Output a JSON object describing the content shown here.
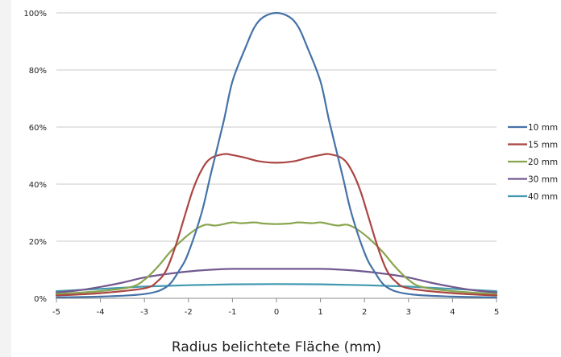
{
  "chart_data": {
    "type": "line",
    "title": "",
    "xlabel": "Radius belichtete Fläche (mm)",
    "ylabel": "",
    "xlim": [
      -5,
      5
    ],
    "ylim": [
      0,
      100
    ],
    "x_ticks": [
      "-5",
      "-4",
      "-3",
      "-2",
      "-1",
      "0",
      "1",
      "2",
      "3",
      "4",
      "5"
    ],
    "y_ticks": [
      "0%",
      "20%",
      "40%",
      "60%",
      "80%",
      "100%"
    ],
    "grid": "horizontal",
    "legend_position": "right",
    "series": [
      {
        "name": "10 mm",
        "color": "#4572a7",
        "points": [
          [
            -5,
            0.3
          ],
          [
            -4,
            0.6
          ],
          [
            -3,
            1.5
          ],
          [
            -2.5,
            4
          ],
          [
            -2.2,
            10
          ],
          [
            -2,
            16
          ],
          [
            -1.7,
            30
          ],
          [
            -1.5,
            43
          ],
          [
            -1.2,
            62
          ],
          [
            -1,
            76
          ],
          [
            -0.7,
            88
          ],
          [
            -0.5,
            95
          ],
          [
            -0.3,
            98.5
          ],
          [
            0,
            100
          ],
          [
            0.3,
            98.5
          ],
          [
            0.5,
            95
          ],
          [
            0.7,
            88
          ],
          [
            1,
            76
          ],
          [
            1.2,
            62
          ],
          [
            1.5,
            43
          ],
          [
            1.7,
            30
          ],
          [
            2,
            16
          ],
          [
            2.2,
            10
          ],
          [
            2.5,
            4
          ],
          [
            3,
            1.5
          ],
          [
            4,
            0.6
          ],
          [
            5,
            0.3
          ]
        ]
      },
      {
        "name": "15 mm",
        "color": "#aa4643",
        "points": [
          [
            -5,
            1
          ],
          [
            -4,
            1.8
          ],
          [
            -3,
            3.5
          ],
          [
            -2.7,
            6
          ],
          [
            -2.5,
            10
          ],
          [
            -2.3,
            18
          ],
          [
            -2.1,
            28
          ],
          [
            -1.9,
            38
          ],
          [
            -1.7,
            45
          ],
          [
            -1.5,
            49
          ],
          [
            -1.2,
            50.5
          ],
          [
            -1,
            50.2
          ],
          [
            -0.7,
            49.2
          ],
          [
            -0.4,
            48
          ],
          [
            0,
            47.5
          ],
          [
            0.4,
            48
          ],
          [
            0.7,
            49.2
          ],
          [
            1,
            50.2
          ],
          [
            1.2,
            50.5
          ],
          [
            1.5,
            49
          ],
          [
            1.7,
            45
          ],
          [
            1.9,
            38
          ],
          [
            2.1,
            28
          ],
          [
            2.3,
            18
          ],
          [
            2.5,
            10
          ],
          [
            2.7,
            6
          ],
          [
            3,
            3.5
          ],
          [
            4,
            1.8
          ],
          [
            5,
            1
          ]
        ]
      },
      {
        "name": "20 mm",
        "color": "#89a54e",
        "points": [
          [
            -5,
            1.5
          ],
          [
            -4,
            2.5
          ],
          [
            -3.3,
            4
          ],
          [
            -3,
            6.5
          ],
          [
            -2.7,
            11
          ],
          [
            -2.4,
            16.5
          ],
          [
            -2.1,
            21
          ],
          [
            -1.8,
            24.5
          ],
          [
            -1.6,
            25.8
          ],
          [
            -1.4,
            25.5
          ],
          [
            -1.2,
            26
          ],
          [
            -1,
            26.6
          ],
          [
            -0.8,
            26.3
          ],
          [
            -0.5,
            26.6
          ],
          [
            -0.3,
            26.2
          ],
          [
            0,
            26
          ],
          [
            0.3,
            26.2
          ],
          [
            0.5,
            26.6
          ],
          [
            0.8,
            26.3
          ],
          [
            1,
            26.6
          ],
          [
            1.2,
            26
          ],
          [
            1.4,
            25.5
          ],
          [
            1.6,
            25.8
          ],
          [
            1.8,
            24.5
          ],
          [
            2.1,
            21
          ],
          [
            2.4,
            16.5
          ],
          [
            2.7,
            11
          ],
          [
            3,
            6.5
          ],
          [
            3.3,
            4
          ],
          [
            4,
            2.5
          ],
          [
            5,
            1.5
          ]
        ]
      },
      {
        "name": "30 mm",
        "color": "#71588f",
        "points": [
          [
            -5,
            2
          ],
          [
            -4.5,
            2.8
          ],
          [
            -4,
            4
          ],
          [
            -3.5,
            5.5
          ],
          [
            -3,
            7.3
          ],
          [
            -2.5,
            8.5
          ],
          [
            -2,
            9.4
          ],
          [
            -1.5,
            10
          ],
          [
            -1,
            10.3
          ],
          [
            0,
            10.3
          ],
          [
            1,
            10.3
          ],
          [
            1.5,
            10
          ],
          [
            2,
            9.4
          ],
          [
            2.5,
            8.5
          ],
          [
            3,
            7.3
          ],
          [
            3.5,
            5.5
          ],
          [
            4,
            4
          ],
          [
            4.5,
            2.8
          ],
          [
            5,
            2
          ]
        ]
      },
      {
        "name": "40 mm",
        "color": "#4198af",
        "points": [
          [
            -5,
            2.5
          ],
          [
            -4,
            3.3
          ],
          [
            -3,
            4.1
          ],
          [
            -2,
            4.6
          ],
          [
            -1,
            4.9
          ],
          [
            0,
            5
          ],
          [
            1,
            4.9
          ],
          [
            2,
            4.6
          ],
          [
            3,
            4.1
          ],
          [
            4,
            3.3
          ],
          [
            5,
            2.5
          ]
        ]
      }
    ]
  }
}
